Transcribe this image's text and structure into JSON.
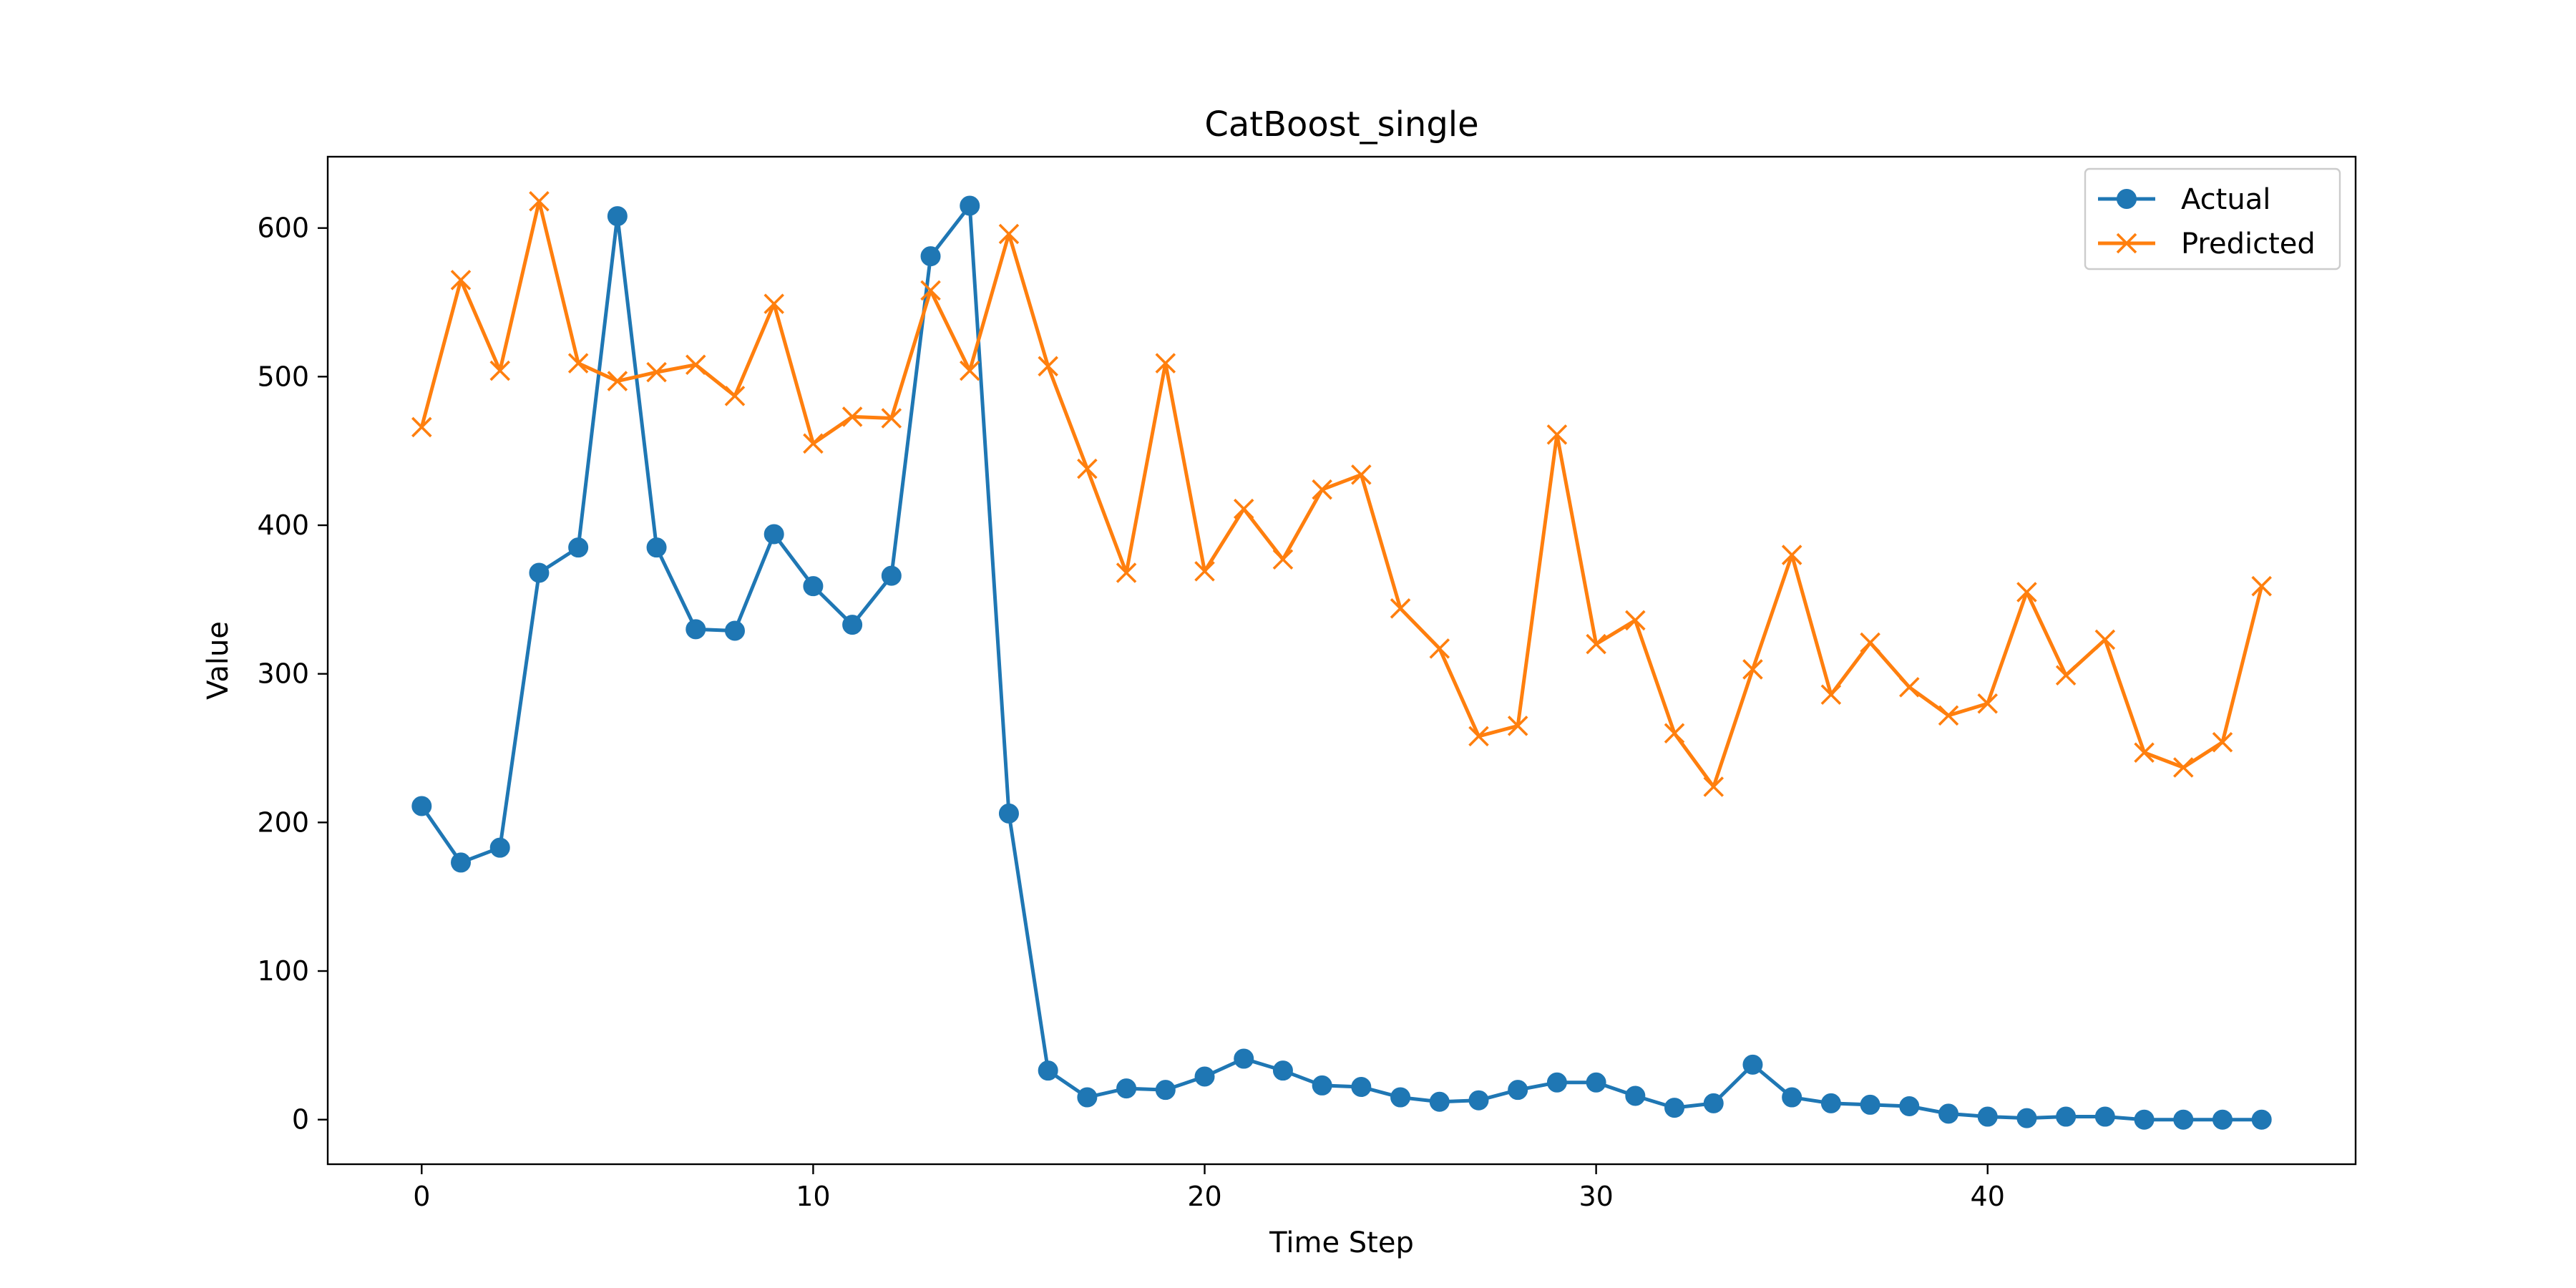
{
  "chart_data": {
    "type": "line",
    "title": "CatBoost_single",
    "xlabel": "Time Step",
    "ylabel": "Value",
    "xlim": [
      -2.4,
      49.4
    ],
    "ylim": [
      -30,
      648
    ],
    "xticks": [
      0,
      10,
      20,
      30,
      40
    ],
    "yticks": [
      0,
      100,
      200,
      300,
      400,
      500,
      600
    ],
    "grid": false,
    "legend_position": "top-right",
    "x": [
      0,
      1,
      2,
      3,
      4,
      5,
      6,
      7,
      8,
      9,
      10,
      11,
      12,
      13,
      14,
      15,
      16,
      17,
      18,
      19,
      20,
      21,
      22,
      23,
      24,
      25,
      26,
      27,
      28,
      29,
      30,
      31,
      32,
      33,
      34,
      35,
      36,
      37,
      38,
      39,
      40,
      41,
      42,
      43,
      44,
      45,
      46,
      47
    ],
    "series": [
      {
        "name": "Actual",
        "color": "#1f77b4",
        "marker": "circle",
        "values": [
          211,
          173,
          183,
          368,
          385,
          608,
          385,
          330,
          329,
          394,
          359,
          333,
          366,
          581,
          615,
          206,
          33,
          15,
          21,
          20,
          29,
          41,
          33,
          23,
          22,
          15,
          12,
          13,
          20,
          25,
          25,
          16,
          8,
          11,
          37,
          15,
          11,
          10,
          9,
          4,
          2,
          1,
          2,
          2,
          0,
          0,
          0,
          0
        ]
      },
      {
        "name": "Predicted",
        "color": "#ff7f0e",
        "marker": "x",
        "values": [
          466,
          565,
          504,
          618,
          509,
          497,
          503,
          508,
          487,
          549,
          455,
          473,
          472,
          558,
          504,
          596,
          507,
          438,
          368,
          509,
          369,
          411,
          377,
          424,
          434,
          344,
          317,
          258,
          265,
          461,
          320,
          336,
          260,
          224,
          303,
          380,
          286,
          321,
          291,
          272,
          280,
          355,
          299,
          323,
          247,
          237,
          254,
          359
        ]
      }
    ]
  }
}
